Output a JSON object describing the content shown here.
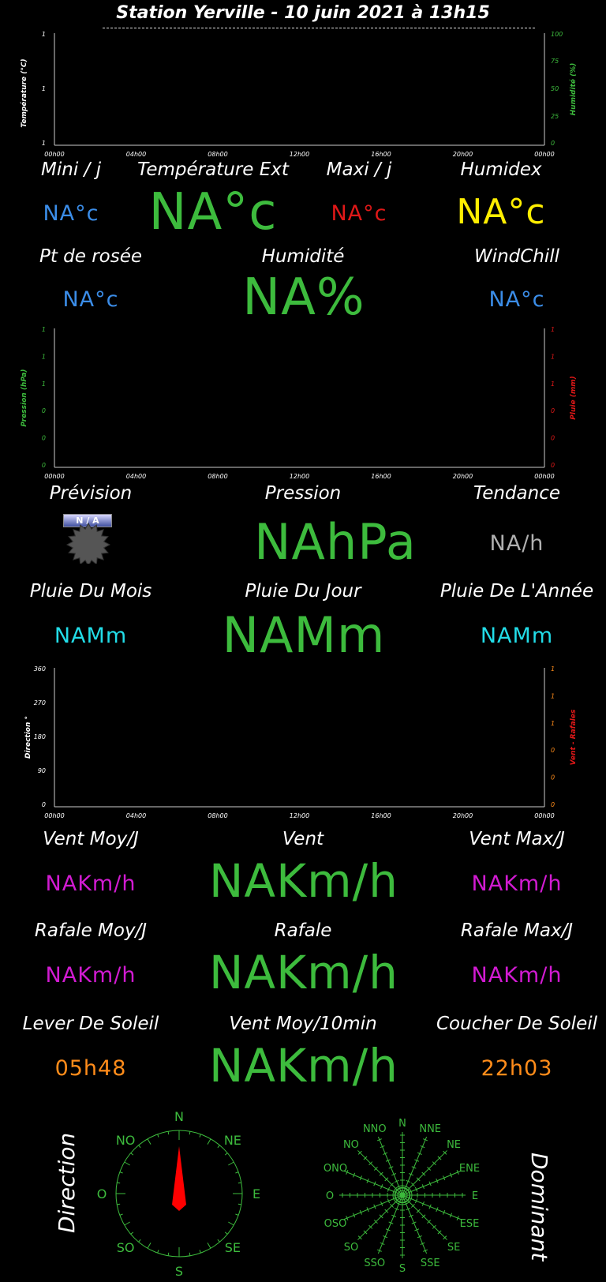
{
  "header": {
    "title": "Station Yerville - 10 juin 2021 à 13h15"
  },
  "chart_data": [
    {
      "type": "line",
      "title": "",
      "xlabel": "",
      "ylabel": "Température (°C)",
      "y2label": "Humidité (%)",
      "x_ticks": [
        "00h00",
        "04h00",
        "08h00",
        "12h00",
        "16h00",
        "20h00",
        "00h00"
      ],
      "y_ticks": [
        "1",
        "1",
        "1"
      ],
      "y2_ticks": [
        "100",
        "75",
        "50",
        "25",
        "0"
      ],
      "series": []
    },
    {
      "type": "line",
      "title": "",
      "xlabel": "",
      "ylabel": "Pression (hPa)",
      "y2label": "Pluie (mm)",
      "x_ticks": [
        "00h00",
        "04h00",
        "08h00",
        "12h00",
        "16h00",
        "20h00",
        "00h00"
      ],
      "y_ticks": [
        "1",
        "1",
        "1",
        "0",
        "0",
        "0"
      ],
      "y2_ticks": [
        "1",
        "1",
        "1",
        "0",
        "0",
        "0"
      ],
      "series": []
    },
    {
      "type": "line",
      "title": "",
      "xlabel": "",
      "ylabel": "Direction °",
      "y2label": "Vent - Rafales",
      "x_ticks": [
        "00h00",
        "04h00",
        "08h00",
        "12h00",
        "16h00",
        "20h00",
        "00h00"
      ],
      "y_ticks": [
        "360",
        "270",
        "180",
        "90",
        "0"
      ],
      "y2_ticks": [
        "1",
        "1",
        "1",
        "0",
        "0",
        "0"
      ],
      "series": []
    }
  ],
  "temp": {
    "mini_label": "Mini / j",
    "mini_value": "NA°c",
    "ext_label": "Température Ext",
    "ext_value": "NA°c",
    "maxi_label": "Maxi / j",
    "maxi_value": "NA°c",
    "humidex_label": "Humidex",
    "humidex_value": "NA°c",
    "dew_label": "Pt de rosée",
    "dew_value": "NA°c",
    "hum_label": "Humidité",
    "hum_value": "NA%",
    "windchill_label": "WindChill",
    "windchill_value": "NA°c"
  },
  "pressure": {
    "forecast_label": "Prévision",
    "forecast_badge": "N / A",
    "pressure_label": "Pression",
    "pressure_value": "NAhPa",
    "trend_label": "Tendance",
    "trend_value": "NA/h"
  },
  "rain": {
    "month_label": "Pluie Du Mois",
    "month_value": "NAMm",
    "day_label": "Pluie Du Jour",
    "day_value": "NAMm",
    "year_label": "Pluie De L'Année",
    "year_value": "NAMm"
  },
  "wind": {
    "avg_label": "Vent Moy/J",
    "avg_value": "NAKm/h",
    "wind_label": "Vent",
    "wind_value": "NAKm/h",
    "max_label": "Vent Max/J",
    "max_value": "NAKm/h",
    "gust_avg_label": "Rafale Moy/J",
    "gust_avg_value": "NAKm/h",
    "gust_label": "Rafale",
    "gust_value": "NAKm/h",
    "gust_max_label": "Rafale Max/J",
    "gust_max_value": "NAKm/h",
    "avg10_label": "Vent Moy/10min",
    "avg10_value": "NAKm/h"
  },
  "sun": {
    "rise_label": "Lever De Soleil",
    "rise_value": "05h48",
    "set_label": "Coucher De Soleil",
    "set_value": "22h03"
  },
  "compass": {
    "direction_label": "Direction",
    "dominant_label": "Dominant",
    "points": [
      "N",
      "NE",
      "E",
      "SE",
      "S",
      "SO",
      "O",
      "NO"
    ],
    "rose_points": [
      "N",
      "NNE",
      "NE",
      "ENE",
      "E",
      "ESE",
      "SE",
      "SSE",
      "S",
      "SSO",
      "SO",
      "OSO",
      "O",
      "ONO",
      "NO",
      "NNO"
    ]
  },
  "colors": {
    "green": "#3dbb3d",
    "blue": "#3b8de8",
    "red": "#e01818",
    "yellow": "#ffee00",
    "cyan": "#22dde8",
    "magenta": "#d21bd2",
    "orange": "#ff8c1a"
  }
}
